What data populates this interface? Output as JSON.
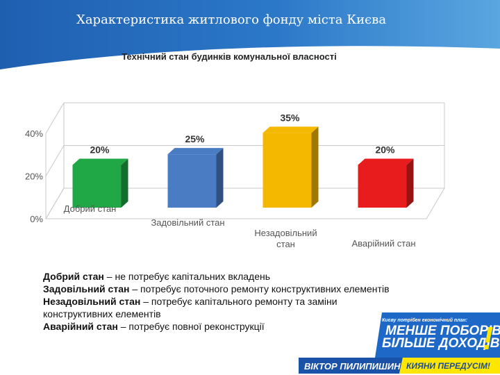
{
  "slide_title": "Характеристика житлового фонду міста Києва",
  "chart_data": {
    "type": "bar",
    "title": "Технічний стан будинків комунальної власності",
    "categories": [
      "Добрий стан",
      "Задовільний стан",
      "Незадовільний стан",
      "Аварійний стан"
    ],
    "category_lines": [
      [
        "Добрий стан"
      ],
      [
        "Задовільний стан"
      ],
      [
        "Незадовільний",
        "стан"
      ],
      [
        "Аварійний стан"
      ]
    ],
    "values": [
      20,
      25,
      35,
      20
    ],
    "data_labels": [
      "20%",
      "25%",
      "35%",
      "20%"
    ],
    "colors": [
      "#1fa845",
      "#4a7cc4",
      "#f5b800",
      "#e81c1c"
    ],
    "ylim": [
      0,
      40
    ],
    "yticks": [
      0,
      20,
      40
    ],
    "ytick_labels": [
      "0%",
      "20%",
      "40%"
    ],
    "grid": true
  },
  "legend": [
    {
      "term": "Добрий стан",
      "desc": " – не потребує капітальних вкладень"
    },
    {
      "term": "Задовільний стан",
      "desc": " – потребує поточного ремонту конструктивних елементів"
    },
    {
      "term": "Незадовільний стан",
      "desc": " – потребує капітального ремонту та заміни конструктивних елементів"
    },
    {
      "term": "Аварійний стан",
      "desc": " – потребує повної реконструкції"
    }
  ],
  "banner": {
    "top_text": "Києву потрібен економічний план:",
    "line1": "МЕНШЕ ПОБОРІВ",
    "line2": "БІЛЬШЕ ДОХОДІВ",
    "name": "ВІКТОР ПИЛИПИШИН",
    "slogan": "КИЯНИ ПЕРЕДУСІМ!",
    "exclamation": "!"
  }
}
